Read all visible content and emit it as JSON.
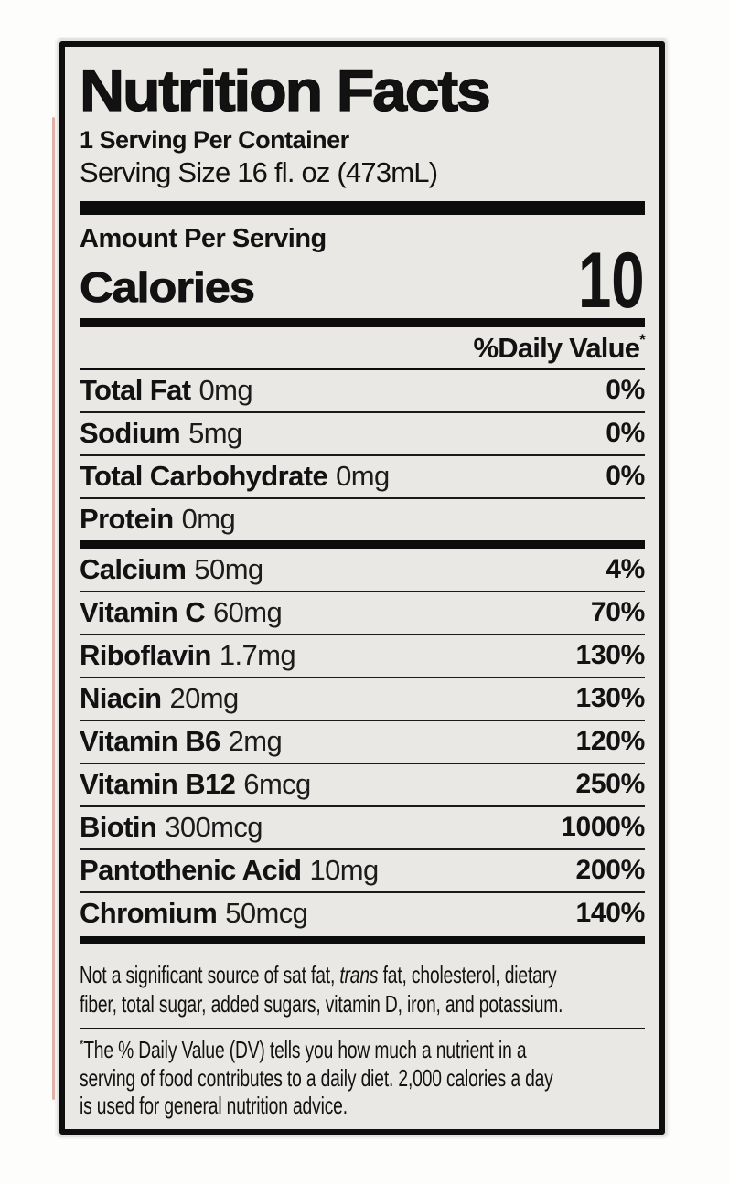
{
  "label": {
    "title": "Nutrition Facts",
    "servings_per_container": "1 Serving Per Container",
    "serving_size": "Serving Size 16 fl. oz (473mL)",
    "amount_per_serving": "Amount Per Serving",
    "calories": {
      "label": "Calories",
      "value": "10"
    },
    "daily_value_header": "%Daily Value",
    "daily_value_asterisk": "*",
    "macro_rows": [
      {
        "name": "Total Fat",
        "amount": "0mg",
        "daily_value": "0%"
      },
      {
        "name": "Sodium",
        "amount": "5mg",
        "daily_value": "0%"
      },
      {
        "name": "Total Carbohydrate",
        "amount": "0mg",
        "daily_value": "0%"
      },
      {
        "name": "Protein",
        "amount": "0mg",
        "daily_value": ""
      }
    ],
    "micro_rows": [
      {
        "name": "Calcium",
        "amount": "50mg",
        "daily_value": "4%"
      },
      {
        "name": "Vitamin C",
        "amount": "60mg",
        "daily_value": "70%"
      },
      {
        "name": "Riboflavin",
        "amount": "1.7mg",
        "daily_value": "130%"
      },
      {
        "name": "Niacin",
        "amount": "20mg",
        "daily_value": "130%"
      },
      {
        "name": "Vitamin B6",
        "amount": "2mg",
        "daily_value": "120%"
      },
      {
        "name": "Vitamin B12",
        "amount": "6mcg",
        "daily_value": "250%"
      },
      {
        "name": "Biotin",
        "amount": "300mcg",
        "daily_value": "1000%"
      },
      {
        "name": "Pantothenic Acid",
        "amount": "10mg",
        "daily_value": "200%"
      },
      {
        "name": "Chromium",
        "amount": "50mcg",
        "daily_value": "140%"
      }
    ],
    "not_significant": {
      "line1_pre": "Not a significant source of sat fat, ",
      "line1_italic": "trans",
      "line1_post": " fat, cholesterol, dietary",
      "line2": "fiber, total sugar, added sugars, vitamin D, iron, and potassium."
    },
    "footnote": {
      "asterisk": "*",
      "line1": "The % Daily Value (DV) tells you how much a nutrient in a",
      "line2": "serving of food contributes to a daily diet. 2,000 calories a day",
      "line3": "is used for general nutrition advice."
    },
    "colors": {
      "label_background": "#e9e8e5",
      "border": "#0e0e0e",
      "text": "#121212"
    }
  }
}
